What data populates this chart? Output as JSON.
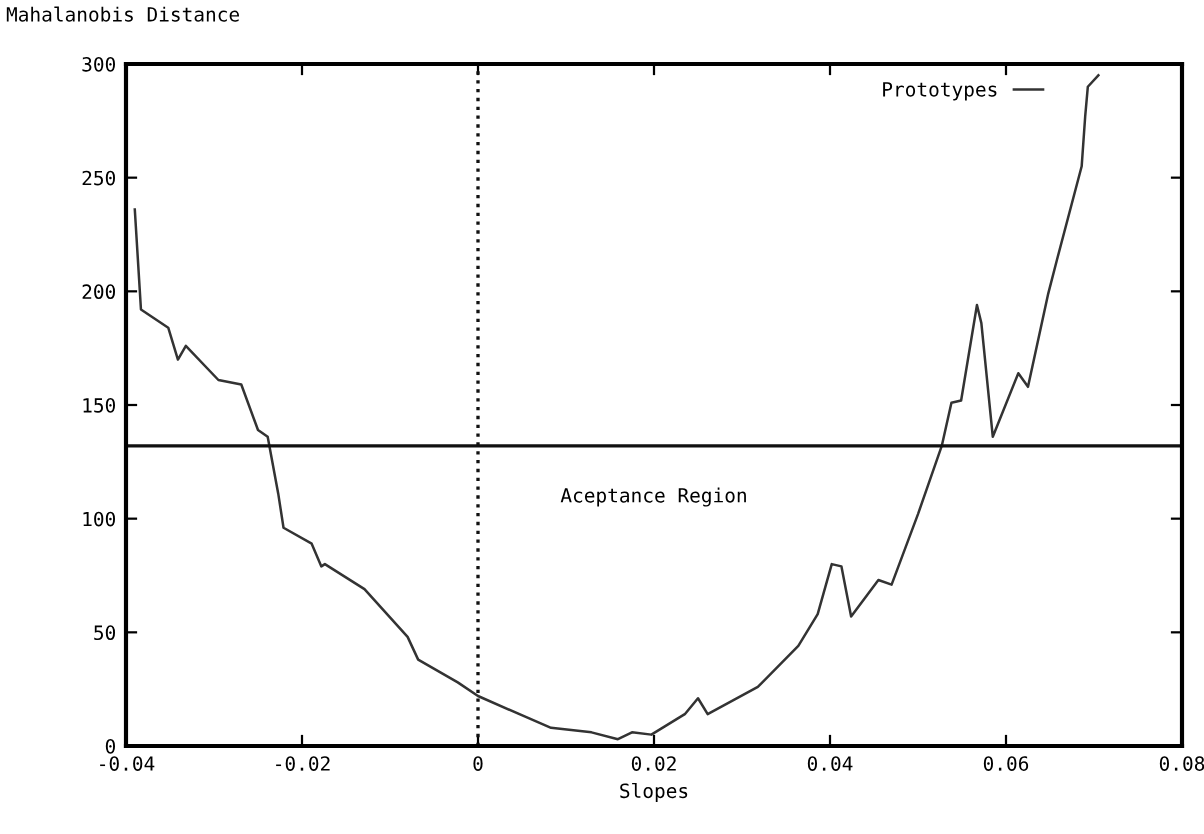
{
  "chart_data": {
    "type": "line",
    "xlabel": "Slopes",
    "ylabel": "Mahalanobis Distance",
    "xlim": [
      -0.04,
      0.08
    ],
    "xticks": [
      -0.04,
      -0.02,
      0,
      0.02,
      0.04,
      0.06,
      {
        "value": 0.08,
        "label": "0.08"
      }
    ],
    "ylim": [
      0,
      300
    ],
    "yticks": [
      0,
      50,
      100,
      150,
      200,
      250,
      300
    ],
    "grid": false,
    "legend": "top right",
    "marker": "none",
    "line_style": "solid",
    "series": [
      {
        "name": "Prototypes",
        "color": "#333333",
        "x": [
          -0.039,
          -0.0383,
          -0.0352,
          -0.0341,
          -0.0332,
          -0.0295,
          -0.0269,
          -0.025,
          -0.0239,
          -0.0227,
          -0.0221,
          -0.0189,
          -0.0178,
          -0.0174,
          -0.0129,
          -0.008,
          -0.0068,
          -0.0023,
          0,
          0.0053,
          0.0083,
          0.0129,
          0.0159,
          0.0175,
          0.0197,
          0.0235,
          0.025,
          0.0261,
          0.0318,
          0.0364,
          0.0386,
          0.0402,
          0.0413,
          0.0424,
          0.0455,
          0.047,
          0.05,
          0.0527,
          0.0538,
          0.0549,
          0.0567,
          0.0572,
          0.0585,
          0.0614,
          0.0625,
          0.0648,
          0.0658,
          0.0686,
          0.069,
          0.0693,
          0.0705
        ],
        "values": [
          236,
          192,
          184,
          170,
          176,
          161,
          159,
          139,
          136,
          111,
          96,
          89,
          79,
          80,
          69,
          48,
          38,
          28,
          22,
          13,
          8,
          6,
          3,
          6,
          5,
          14,
          21,
          14,
          26,
          44,
          58,
          80,
          79,
          57,
          73,
          71,
          102,
          132,
          151,
          152,
          194,
          186,
          136,
          164,
          158,
          199,
          214,
          255,
          277,
          290,
          295
        ]
      }
    ],
    "ref_lines": [
      {
        "axis": "y",
        "value": 132,
        "color": "#111111",
        "line_style": "solid"
      },
      {
        "axis": "x",
        "value": 0,
        "color": "#111111",
        "line_style": "dotted"
      }
    ],
    "annotations": [
      "Aceptance Region"
    ]
  }
}
